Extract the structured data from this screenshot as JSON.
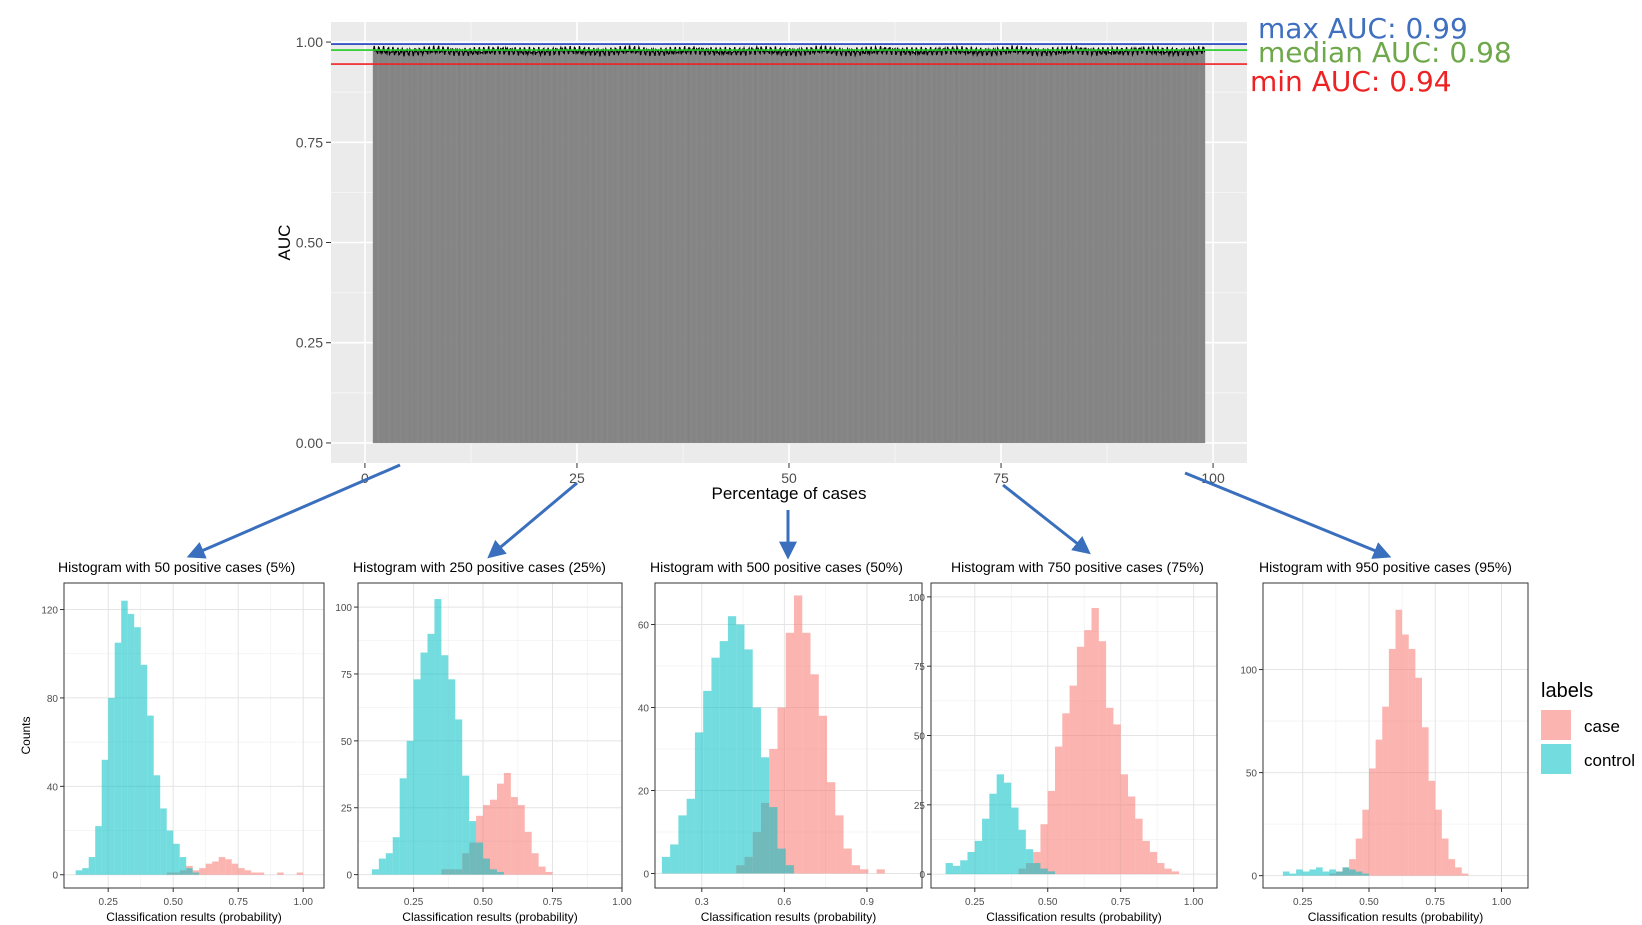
{
  "chart_data": [
    {
      "type": "bar",
      "xlabel": "Percentage of cases",
      "ylabel": "AUC",
      "xlim": [
        -4,
        104
      ],
      "ylim": [
        -0.05,
        1.05
      ],
      "xticks": [
        0,
        25,
        50,
        75,
        100
      ],
      "xtick_labels": [
        "0",
        "25",
        "50",
        "75",
        "100"
      ],
      "yticks": [
        0,
        0.25,
        0.5,
        0.75,
        1.0
      ],
      "ytick_labels": [
        "0.00",
        "0.25",
        "0.50",
        "0.75",
        "1.00"
      ],
      "bar_range": [
        1,
        99
      ],
      "bar_step": 0.1,
      "bar_color": "#7f7f7f",
      "auc_typical": 0.98,
      "reference_lines": [
        {
          "label": "max AUC: 0.99",
          "value": 0.995,
          "color": "#1f3fbf",
          "text_color": "#3f6fbf"
        },
        {
          "label": "median AUC: 0.98",
          "value": 0.98,
          "color": "#22cc22",
          "text_color": "#6fa84a"
        },
        {
          "label": "min AUC: 0.94",
          "value": 0.945,
          "color": "#ee2222",
          "text_color": "#ee2222"
        }
      ],
      "grid": true
    },
    {
      "type": "bar",
      "title": "Histogram with 50 positive cases (5%)",
      "xlabel": "Classification results (probability)",
      "ylabel": "Counts",
      "xlim": [
        0.08,
        1.08
      ],
      "ylim": [
        -6,
        132
      ],
      "xticks": [
        0.25,
        0.5,
        0.75,
        1.0
      ],
      "xtick_labels": [
        "0.25",
        "0.50",
        "0.75",
        "1.00"
      ],
      "yticks": [
        0,
        40,
        80,
        120
      ],
      "ytick_labels": [
        "0",
        "40",
        "80",
        "120"
      ],
      "series": [
        {
          "name": "control",
          "bin_start": 0.125,
          "bin_width": 0.025,
          "counts": [
            2,
            3,
            8,
            22,
            52,
            80,
            105,
            124,
            118,
            112,
            95,
            72,
            45,
            30,
            20,
            14,
            8,
            3,
            1
          ]
        },
        {
          "name": "case",
          "bin_start": 0.475,
          "bin_width": 0.025,
          "counts": [
            1,
            1,
            2,
            4,
            2,
            3,
            5,
            6,
            8,
            7,
            5,
            3,
            2,
            1,
            1,
            0,
            0,
            1,
            0,
            0,
            1
          ]
        }
      ]
    },
    {
      "type": "bar",
      "title": "Histogram with 250 positive cases (25%)",
      "xlabel": "Classification results (probability)",
      "ylabel": "",
      "xlim": [
        0.05,
        1.0
      ],
      "ylim": [
        -5,
        109
      ],
      "xticks": [
        0.25,
        0.5,
        0.75,
        1.0
      ],
      "xtick_labels": [
        "0.25",
        "0.50",
        "0.75",
        "1.00"
      ],
      "yticks": [
        0,
        25,
        50,
        75,
        100
      ],
      "ytick_labels": [
        "0",
        "25",
        "50",
        "75",
        "100"
      ],
      "series": [
        {
          "name": "control",
          "bin_start": 0.1,
          "bin_width": 0.025,
          "counts": [
            2,
            6,
            8,
            14,
            36,
            50,
            73,
            83,
            90,
            103,
            82,
            73,
            58,
            37,
            20,
            12,
            6,
            2,
            1
          ]
        },
        {
          "name": "case",
          "bin_start": 0.35,
          "bin_width": 0.025,
          "counts": [
            2,
            2,
            2,
            8,
            12,
            22,
            26,
            28,
            34,
            38,
            29,
            26,
            16,
            8,
            3,
            1
          ]
        }
      ]
    },
    {
      "type": "bar",
      "title": "Histogram with 500 positive cases (50%)",
      "xlabel": "Classification results (probability)",
      "ylabel": "",
      "xlim": [
        0.13,
        1.1
      ],
      "ylim": [
        -3.5,
        70
      ],
      "xticks": [
        0.3,
        0.6,
        0.9
      ],
      "xtick_labels": [
        "0.3",
        "0.6",
        "0.9"
      ],
      "yticks": [
        0,
        20,
        40,
        60
      ],
      "ytick_labels": [
        "0",
        "20",
        "40",
        "60"
      ],
      "series": [
        {
          "name": "control",
          "bin_start": 0.155,
          "bin_width": 0.03,
          "counts": [
            4,
            7,
            14,
            18,
            34,
            44,
            52,
            56,
            62,
            60,
            54,
            40,
            28,
            16,
            6,
            2
          ]
        },
        {
          "name": "case",
          "bin_start": 0.425,
          "bin_width": 0.03,
          "counts": [
            2,
            4,
            10,
            17,
            30,
            40,
            58,
            67,
            58,
            48,
            38,
            22,
            14,
            6,
            2,
            1,
            0,
            1
          ]
        }
      ]
    },
    {
      "type": "bar",
      "title": "Histogram with 750 positive cases (75%)",
      "xlabel": "Classification results (probability)",
      "ylabel": "",
      "xlim": [
        0.1,
        1.08
      ],
      "ylim": [
        -5,
        105
      ],
      "xticks": [
        0.25,
        0.5,
        0.75,
        1.0
      ],
      "xtick_labels": [
        "0.25",
        "0.50",
        "0.75",
        "1.00"
      ],
      "yticks": [
        0,
        25,
        50,
        75,
        100
      ],
      "ytick_labels": [
        "0",
        "25",
        "50",
        "75",
        "100"
      ],
      "series": [
        {
          "name": "control",
          "bin_start": 0.15,
          "bin_width": 0.025,
          "counts": [
            4,
            3,
            5,
            8,
            12,
            20,
            29,
            36,
            33,
            24,
            16,
            9,
            4,
            2,
            1
          ]
        },
        {
          "name": "case",
          "bin_start": 0.4,
          "bin_width": 0.025,
          "counts": [
            2,
            4,
            8,
            18,
            30,
            46,
            58,
            68,
            82,
            88,
            96,
            84,
            60,
            54,
            36,
            28,
            20,
            12,
            8,
            4,
            2,
            1
          ]
        }
      ]
    },
    {
      "type": "bar",
      "title": "Histogram with 950 positive cases (95%)",
      "xlabel": "Classification results (probability)",
      "ylabel": "",
      "xlim": [
        0.1,
        1.1
      ],
      "ylim": [
        -6,
        142
      ],
      "xticks": [
        0.25,
        0.5,
        0.75,
        1.0
      ],
      "xtick_labels": [
        "0.25",
        "0.50",
        "0.75",
        "1.00"
      ],
      "yticks": [
        0,
        50,
        100
      ],
      "ytick_labels": [
        "0",
        "50",
        "100"
      ],
      "series": [
        {
          "name": "control",
          "bin_start": 0.175,
          "bin_width": 0.025,
          "counts": [
            2,
            1,
            3,
            2,
            3,
            4,
            2,
            3,
            2,
            4,
            3,
            2,
            1
          ]
        },
        {
          "name": "case",
          "bin_start": 0.35,
          "bin_width": 0.025,
          "counts": [
            1,
            2,
            4,
            8,
            18,
            32,
            52,
            66,
            82,
            110,
            129,
            117,
            110,
            96,
            72,
            46,
            32,
            18,
            8,
            4,
            1
          ]
        }
      ]
    }
  ],
  "legend": {
    "title": "labels",
    "items": [
      {
        "label": "case",
        "color": "#f8766d"
      },
      {
        "label": "control",
        "color": "#00bfc4"
      }
    ]
  },
  "colors": {
    "case": "#f8766d",
    "control": "#00bfc4",
    "panel": "#ebebeb",
    "grid": "#ffffff",
    "arrow": "#3a6fbd"
  }
}
